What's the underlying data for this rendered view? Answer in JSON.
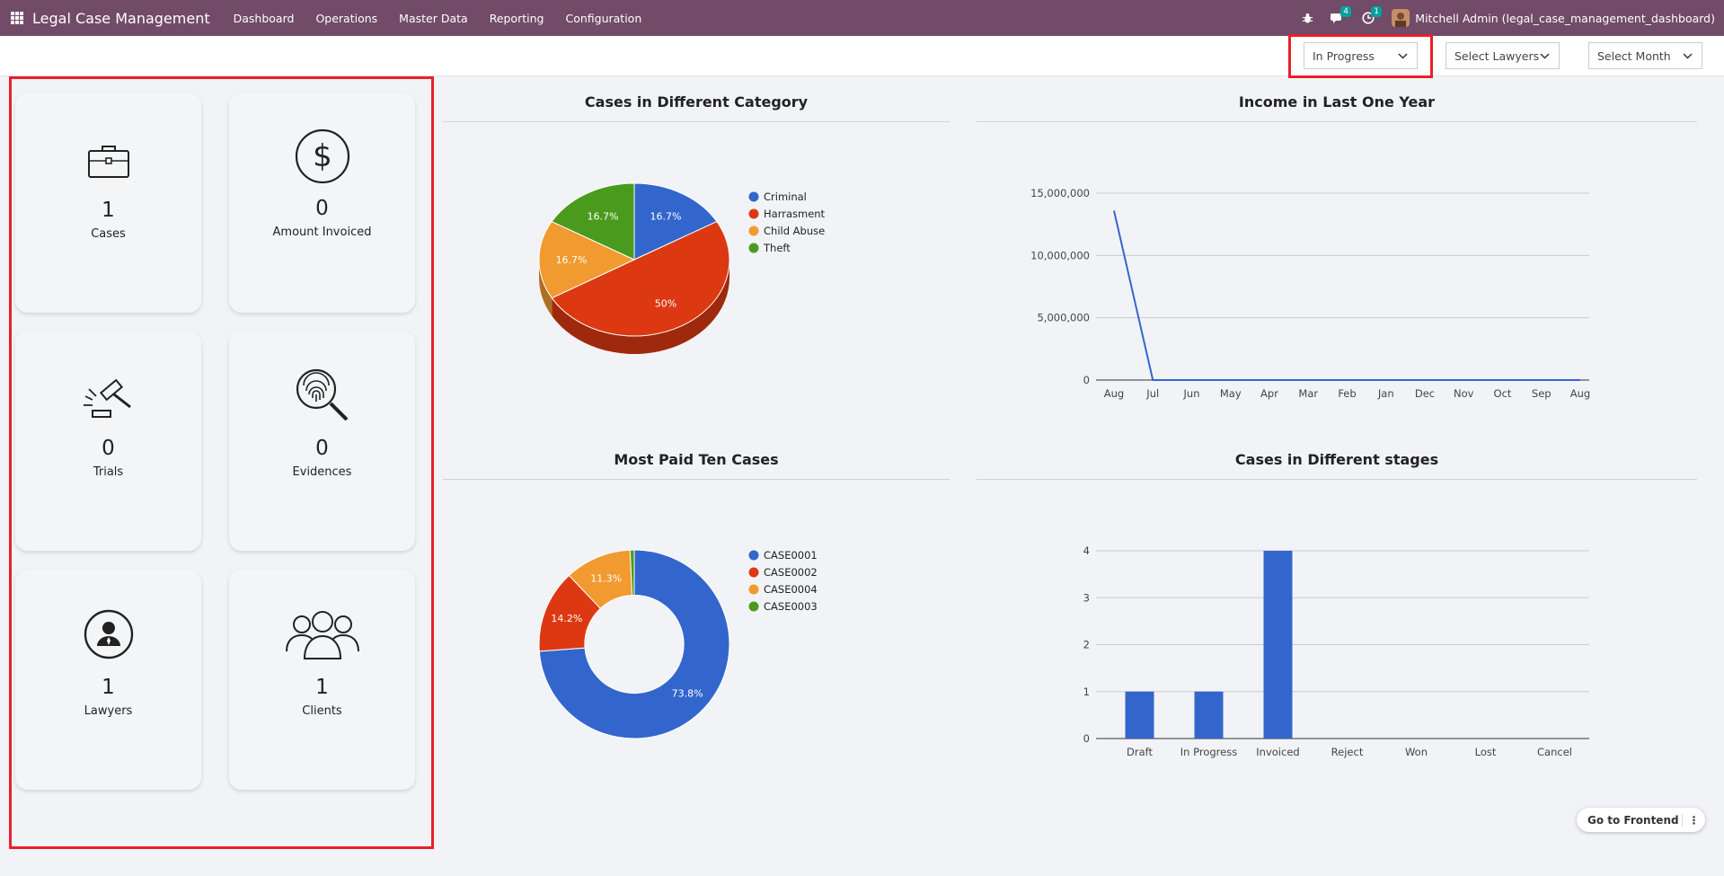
{
  "app": {
    "title": "Legal Case Management",
    "menu": [
      "Dashboard",
      "Operations",
      "Master Data",
      "Reporting",
      "Configuration"
    ],
    "messages_count": "4",
    "activities_count": "1",
    "user_name": "Mitchell Admin (legal_case_management_dashboard)"
  },
  "filters": {
    "status": "In Progress",
    "lawyers": "Select Lawyers",
    "month": "Select Month"
  },
  "cards": [
    {
      "value": "1",
      "label": "Cases",
      "icon": "briefcase-icon"
    },
    {
      "value": "0",
      "label": "Amount Invoiced",
      "icon": "dollar-icon"
    },
    {
      "value": "0",
      "label": "Trials",
      "icon": "gavel-icon"
    },
    {
      "value": "0",
      "label": "Evidences",
      "icon": "fingerprint-icon"
    },
    {
      "value": "1",
      "label": "Lawyers",
      "icon": "lawyer-icon"
    },
    {
      "value": "1",
      "label": "Clients",
      "icon": "clients-icon"
    }
  ],
  "floating": {
    "go_frontend": "Go to Frontend"
  },
  "chart_data": [
    {
      "type": "pie",
      "title": "Cases in Different Category",
      "categories": [
        "Criminal",
        "Harrasment",
        "Child Abuse",
        "Theft"
      ],
      "values": [
        16.7,
        50,
        16.7,
        16.7
      ],
      "labels": [
        "16.7%",
        "50%",
        "16.7%",
        "16.7%"
      ],
      "colors": [
        "#3366CC",
        "#DC3912",
        "#F19A2F",
        "#4A9A1D"
      ],
      "legend": "right"
    },
    {
      "type": "line",
      "title": "Income in Last One Year",
      "x": [
        "Aug",
        "Jul",
        "Jun",
        "May",
        "Apr",
        "Mar",
        "Feb",
        "Jan",
        "Dec",
        "Nov",
        "Oct",
        "Sep",
        "Aug"
      ],
      "values": [
        13600000,
        0,
        0,
        0,
        0,
        0,
        0,
        0,
        0,
        0,
        0,
        0,
        0
      ],
      "ylim": [
        0,
        15000000
      ],
      "yticks": [
        "0",
        "5,000,000",
        "10,000,000",
        "15,000,000"
      ],
      "color": "#3366CC"
    },
    {
      "type": "pie",
      "title": "Most Paid Ten Cases",
      "categories": [
        "CASE0001",
        "CASE0002",
        "CASE0004",
        "CASE0003"
      ],
      "values": [
        73.8,
        14.2,
        11.3,
        0.7
      ],
      "labels": [
        "73.8%",
        "14.2%",
        "11.3%",
        ""
      ],
      "colors": [
        "#3366CC",
        "#DC3912",
        "#F19A2F",
        "#4A9A1D"
      ],
      "legend": "right",
      "donut": true
    },
    {
      "type": "bar",
      "title": "Cases in Different stages",
      "categories": [
        "Draft",
        "In Progress",
        "Invoiced",
        "Reject",
        "Won",
        "Lost",
        "Cancel"
      ],
      "values": [
        1,
        1,
        4,
        0,
        0,
        0,
        0
      ],
      "ylim": [
        0,
        4
      ],
      "yticks": [
        "0",
        "1",
        "2",
        "3",
        "4"
      ],
      "color": "#3366CC"
    }
  ]
}
